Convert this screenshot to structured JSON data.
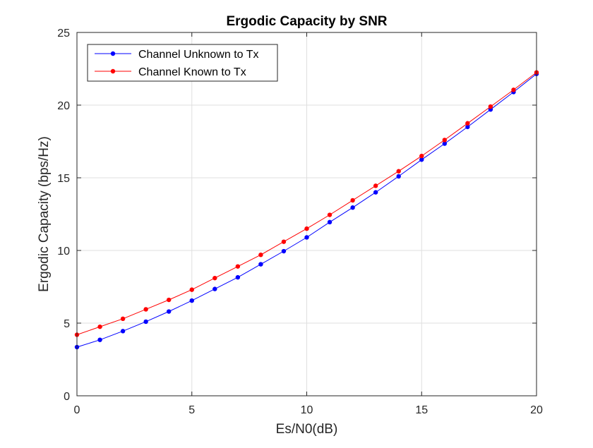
{
  "chart_data": {
    "type": "line",
    "title": "Ergodic Capacity by SNR",
    "xlabel": "Es/N0(dB)",
    "ylabel": "Ergodic Capacity (bps/Hz)",
    "xlim": [
      0,
      20
    ],
    "ylim": [
      0,
      25
    ],
    "xticks": [
      0,
      5,
      10,
      15,
      20
    ],
    "yticks": [
      0,
      5,
      10,
      15,
      20,
      25
    ],
    "grid": true,
    "legend_position": "top-left",
    "x": [
      0,
      1,
      2,
      3,
      4,
      5,
      6,
      7,
      8,
      9,
      10,
      11,
      12,
      13,
      14,
      15,
      16,
      17,
      18,
      19,
      20
    ],
    "series": [
      {
        "name": "Channel Unknown to Tx",
        "color": "#0000ff",
        "marker": "dot",
        "values": [
          3.35,
          3.85,
          4.45,
          5.1,
          5.8,
          6.55,
          7.35,
          8.15,
          9.05,
          9.95,
          10.9,
          11.95,
          12.95,
          14.0,
          15.1,
          16.25,
          17.35,
          18.5,
          19.7,
          20.9,
          22.15
        ]
      },
      {
        "name": "Channel Known to Tx",
        "color": "#ff0000",
        "marker": "dot",
        "values": [
          4.2,
          4.75,
          5.3,
          5.95,
          6.6,
          7.3,
          8.1,
          8.9,
          9.7,
          10.6,
          11.5,
          12.45,
          13.45,
          14.45,
          15.45,
          16.5,
          17.6,
          18.75,
          19.9,
          21.05,
          22.25
        ]
      }
    ]
  }
}
